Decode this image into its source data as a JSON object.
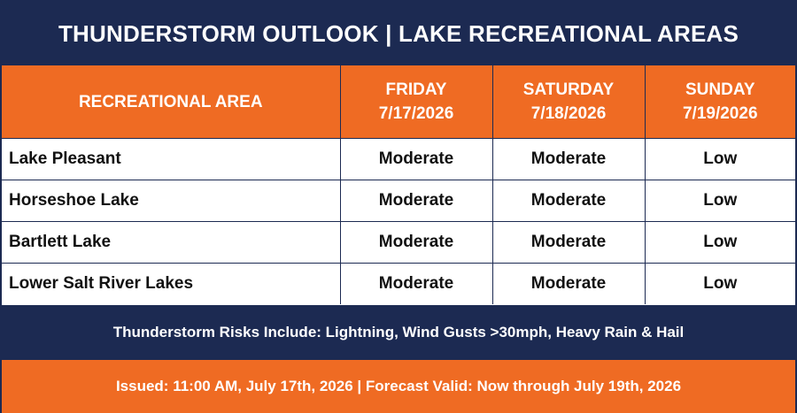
{
  "title": "THUNDERSTORM OUTLOOK | LAKE RECREATIONAL AREAS",
  "table": {
    "area_header": "RECREATIONAL AREA",
    "days": [
      {
        "name": "FRIDAY",
        "date": "7/17/2026"
      },
      {
        "name": "SATURDAY",
        "date": "7/18/2026"
      },
      {
        "name": "SUNDAY",
        "date": "7/19/2026"
      }
    ],
    "rows": [
      {
        "area": "Lake Pleasant",
        "values": [
          "Moderate",
          "Moderate",
          "Low"
        ]
      },
      {
        "area": "Horseshoe Lake",
        "values": [
          "Moderate",
          "Moderate",
          "Low"
        ]
      },
      {
        "area": "Bartlett Lake",
        "values": [
          "Moderate",
          "Moderate",
          "Low"
        ]
      },
      {
        "area": "Lower Salt River Lakes",
        "values": [
          "Moderate",
          "Moderate",
          "Low"
        ]
      }
    ]
  },
  "risks": "Thunderstorm Risks Include: Lightning, Wind Gusts >30mph, Heavy Rain & Hail",
  "issued": "Issued: 11:00 AM, July 17th, 2026 | Forecast Valid: Now through July 19th, 2026",
  "colors": {
    "navy": "#1c2a52",
    "orange": "#ef6b23",
    "white": "#ffffff"
  }
}
